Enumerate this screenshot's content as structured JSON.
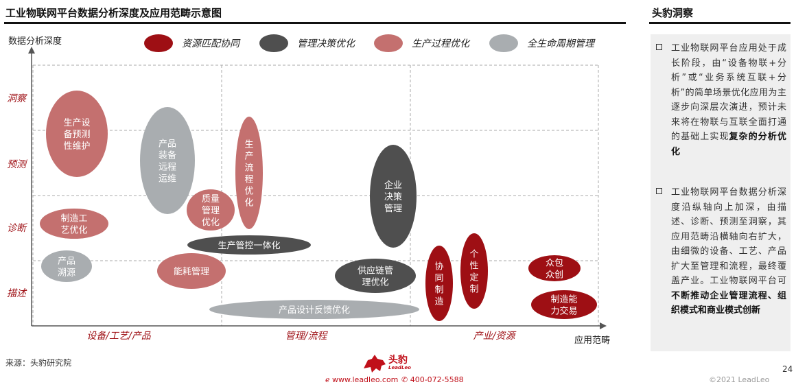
{
  "header": {
    "title": "工业物联网平台数据分析深度及应用范畴示意图",
    "side_title": "头豹洞察"
  },
  "chart_data": {
    "type": "scatter",
    "ylabel": "数据分析深度",
    "xlabel": "应用范畴",
    "y_categories": [
      "描述",
      "诊断",
      "预测",
      "洞察"
    ],
    "x_categories": [
      "设备/工艺/产品",
      "管理/流程",
      "产业/资源"
    ],
    "legend": [
      {
        "name": "资源匹配协同",
        "color": "#9e0f14"
      },
      {
        "name": "管理决策优化",
        "color": "#4f4f4f"
      },
      {
        "name": "生产过程优化",
        "color": "#c4706f"
      },
      {
        "name": "全生命周期管理",
        "color": "#a9adb0"
      }
    ],
    "legend_placement": "top",
    "grid": true,
    "items": [
      {
        "label": "生产设备预测性维护",
        "lines": [
          "生产设",
          "备预测",
          "性维护"
        ],
        "category": "生产过程优化"
      },
      {
        "label": "产品装备远程运维",
        "lines": [
          "产品",
          "装备",
          "远程",
          "运维"
        ],
        "category": "全生命周期管理"
      },
      {
        "label": "生产流程优化",
        "lines": [
          "生",
          "产",
          "流",
          "程",
          "优",
          "化"
        ],
        "category": "生产过程优化"
      },
      {
        "label": "质量管理优化",
        "lines": [
          "质量",
          "管理",
          "优化"
        ],
        "category": "生产过程优化"
      },
      {
        "label": "制造工艺优化",
        "lines": [
          "制造工",
          "艺优化"
        ],
        "category": "生产过程优化"
      },
      {
        "label": "产品溯源",
        "lines": [
          "产品",
          "溯源"
        ],
        "category": "全生命周期管理"
      },
      {
        "label": "能耗管理",
        "lines": [
          "能耗管理"
        ],
        "category": "生产过程优化"
      },
      {
        "label": "生产管控一体化",
        "lines": [
          "生产管控一体化"
        ],
        "category": "管理决策优化"
      },
      {
        "label": "企业决策管理",
        "lines": [
          "企业",
          "决策",
          "管理"
        ],
        "category": "管理决策优化"
      },
      {
        "label": "供应链管理优化",
        "lines": [
          "供应链管",
          "理优化"
        ],
        "category": "管理决策优化"
      },
      {
        "label": "产品设计反馈优化",
        "lines": [
          "产品设计反馈优化"
        ],
        "category": "全生命周期管理"
      },
      {
        "label": "协同制造",
        "lines": [
          "协",
          "同",
          "制",
          "造"
        ],
        "category": "资源匹配协同"
      },
      {
        "label": "个性定制",
        "lines": [
          "个",
          "性",
          "定",
          "制"
        ],
        "category": "资源匹配协同"
      },
      {
        "label": "众包众创",
        "lines": [
          "众包",
          "众创"
        ],
        "category": "资源匹配协同"
      },
      {
        "label": "制造能力交易",
        "lines": [
          "制造能",
          "力交易"
        ],
        "category": "资源匹配协同"
      }
    ]
  },
  "insight": {
    "bullet1": {
      "text": "工业物联网平台应用处于成长阶段，由“设备物联+分析”或“业务系统互联+分析”的简单场景优化应用为主逐步向深层次演进，预计未来将在物联与互联全面打通的基础上实现",
      "bold": "复杂的分析优化"
    },
    "bullet2": {
      "text": "工业物联网平台数据分析深度沿纵轴向上加深，由描述、诊断、预测至洞察，其应用范畴沿横轴向右扩大，由细微的设备、工艺、产品扩大至管理和流程，最终覆盖产业。工业物联网平台可",
      "bold": "不断推动企业管理流程、组织模式和商业模式创新"
    }
  },
  "footer": {
    "source": "来源：头豹研究院",
    "logo_cn": "头豹",
    "logo_en": "LeadLeo",
    "website": "www.leadleo.com",
    "phone": "400-072-5588",
    "page": "24",
    "copyright": "©2021 LeadLeo"
  }
}
